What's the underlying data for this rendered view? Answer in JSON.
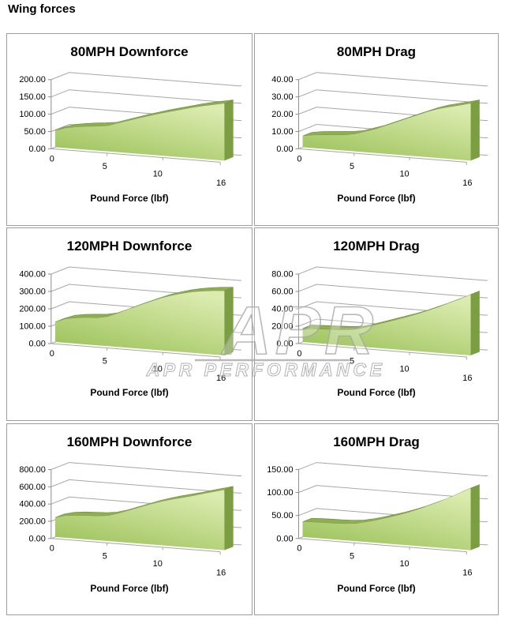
{
  "page_title": "Wing forces",
  "watermark": {
    "logo_text": "APR",
    "brand_text": "APR PERFORMANCE",
    "color": "#a8a8a8"
  },
  "colors": {
    "area_face_light": "#dcecb0",
    "area_face_dark": "#9cc25a",
    "area_top_ribbon": "#8fae52",
    "area_ribbon_edge": "#6f913e",
    "area_side_cap": "#7c9e42",
    "gridline": "#a6a6a6",
    "axis": "#8c8c8c",
    "panel_border": "#9d9d9d",
    "text": "#000000"
  },
  "x_ticks": [
    {
      "x": 0,
      "label": "0"
    },
    {
      "x": 5,
      "label": "5"
    },
    {
      "x": 10,
      "label": "10"
    },
    {
      "x": 16,
      "label": "16"
    }
  ],
  "chart_data": [
    {
      "type": "area",
      "title": "80MPH Downforce",
      "xlabel": "Pound Force (lbf)",
      "x": [
        0,
        1,
        2,
        3,
        4,
        5,
        6,
        7,
        8,
        9,
        10,
        11,
        12,
        13,
        14,
        15,
        16
      ],
      "values": [
        48,
        58,
        63,
        67,
        70,
        74,
        84,
        94,
        104,
        113,
        122,
        130,
        138,
        146,
        153,
        159,
        165
      ],
      "ylim": [
        0,
        200
      ],
      "ytick_labels": [
        "0.00",
        "50.00",
        "100.00",
        "150.00",
        "200.00"
      ],
      "x_tick_labels": [
        "0",
        "5",
        "10",
        "16"
      ],
      "grid": true,
      "legend": "none"
    },
    {
      "type": "area",
      "title": "80MPH Drag",
      "xlabel": "Pound Force (lbf)",
      "x": [
        0,
        1,
        2,
        3,
        4,
        5,
        6,
        7,
        8,
        9,
        10,
        11,
        12,
        13,
        14,
        15,
        16
      ],
      "values": [
        6.5,
        7.5,
        8,
        8.5,
        9,
        10,
        12,
        14,
        16.5,
        19,
        21.5,
        24,
        26.5,
        28.5,
        30,
        31.5,
        33
      ],
      "ylim": [
        0,
        40
      ],
      "ytick_labels": [
        "0.00",
        "10.00",
        "20.00",
        "30.00",
        "40.00"
      ],
      "x_tick_labels": [
        "0",
        "5",
        "10",
        "16"
      ],
      "grid": true,
      "legend": "none"
    },
    {
      "type": "area",
      "title": "120MPH Downforce",
      "xlabel": "Pound Force (lbf)",
      "x": [
        0,
        1,
        2,
        3,
        4,
        5,
        6,
        7,
        8,
        9,
        10,
        11,
        12,
        13,
        14,
        15,
        16
      ],
      "values": [
        115,
        138,
        148,
        154,
        158,
        170,
        196,
        224,
        250,
        276,
        300,
        320,
        337,
        350,
        360,
        367,
        372
      ],
      "ylim": [
        0,
        400
      ],
      "ytick_labels": [
        "0.00",
        "100.00",
        "200.00",
        "300.00",
        "400.00"
      ],
      "x_tick_labels": [
        "0",
        "5",
        "10",
        "16"
      ],
      "grid": true,
      "legend": "none"
    },
    {
      "type": "area",
      "title": "120MPH Drag",
      "xlabel": "Pound Force (lbf)",
      "x": [
        0,
        1,
        2,
        3,
        4,
        5,
        6,
        7,
        8,
        9,
        10,
        11,
        12,
        13,
        14,
        15,
        16
      ],
      "values": [
        15.5,
        16,
        16.5,
        17,
        17.5,
        19,
        22.5,
        26.5,
        30.5,
        34.5,
        38.5,
        43,
        48,
        53,
        58.5,
        64,
        70
      ],
      "ylim": [
        0,
        80
      ],
      "ytick_labels": [
        "0.00",
        "20.00",
        "40.00",
        "60.00",
        "80.00"
      ],
      "x_tick_labels": [
        "0",
        "5",
        "10",
        "16"
      ],
      "grid": true,
      "legend": "none"
    },
    {
      "type": "area",
      "title": "160MPH Downforce",
      "xlabel": "Pound Force (lbf)",
      "x": [
        0,
        1,
        2,
        3,
        4,
        5,
        6,
        7,
        8,
        9,
        10,
        11,
        12,
        13,
        14,
        15,
        16
      ],
      "values": [
        225,
        255,
        268,
        275,
        280,
        295,
        330,
        375,
        420,
        465,
        505,
        540,
        570,
        600,
        635,
        668,
        700
      ],
      "ylim": [
        0,
        800
      ],
      "ytick_labels": [
        "0.00",
        "200.00",
        "400.00",
        "600.00",
        "800.00"
      ],
      "x_tick_labels": [
        "0",
        "5",
        "10",
        "16"
      ],
      "grid": true,
      "legend": "none"
    },
    {
      "type": "area",
      "title": "160MPH Drag",
      "xlabel": "Pound Force (lbf)",
      "x": [
        0,
        1,
        2,
        3,
        4,
        5,
        6,
        7,
        8,
        9,
        10,
        11,
        12,
        13,
        14,
        15,
        16
      ],
      "values": [
        33,
        34,
        34.5,
        35,
        36,
        38,
        43,
        49,
        56,
        63,
        71,
        80,
        90,
        100,
        111,
        123,
        135
      ],
      "ylim": [
        0,
        150
      ],
      "ytick_labels": [
        "0.00",
        "50.00",
        "100.00",
        "150.00"
      ],
      "x_tick_labels": [
        "0",
        "5",
        "10",
        "16"
      ],
      "grid": true,
      "legend": "none"
    }
  ]
}
